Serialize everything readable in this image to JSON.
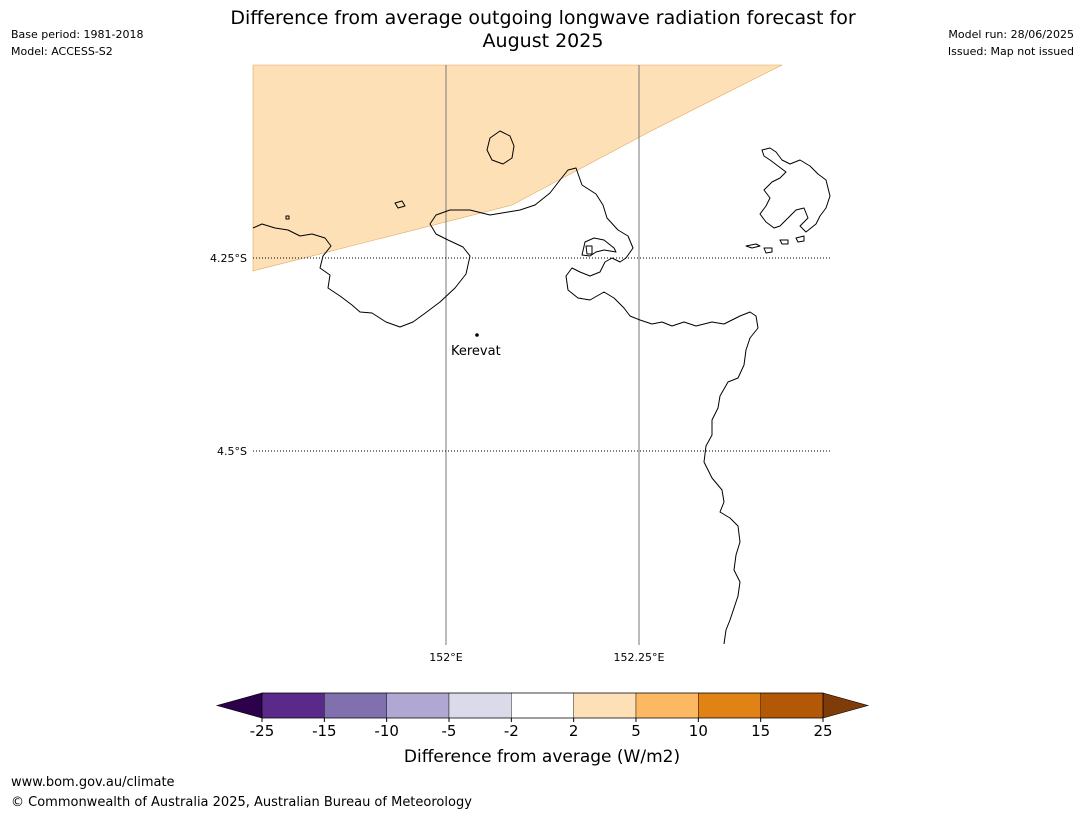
{
  "header": {
    "base_period": "Base period: 1981-2018",
    "model": "Model: ACCESS-S2",
    "title_line1": "Difference from average outgoing longwave radiation forecast for",
    "title_line2": "August 2025",
    "model_run": "Model run: 28/06/2025",
    "issued": "Issued: Map not issued"
  },
  "map": {
    "lat_labels": [
      "4.25°S",
      "4.5°S"
    ],
    "lon_labels": [
      "152°E",
      "152.25°E"
    ],
    "place": "Kerevat",
    "anomaly_fill_color": "#fde0b6",
    "coastline_color": "#000000"
  },
  "colorbar": {
    "label": "Difference from average (W/m2)",
    "ticks": [
      "-25",
      "-15",
      "-10",
      "-5",
      "-2",
      "2",
      "5",
      "10",
      "15",
      "25"
    ],
    "colors": [
      "#5a2a8a",
      "#8070ad",
      "#b0a7d2",
      "#dbdaeb",
      "#ffffff",
      "#fee0b6",
      "#fdb863",
      "#e08214",
      "#b35806"
    ],
    "under_color": "#2d004b",
    "over_color": "#7f3b08"
  },
  "footer": {
    "url": "www.bom.gov.au/climate",
    "copyright": "© Commonwealth of Australia 2025, Australian Bureau of Meteorology"
  }
}
